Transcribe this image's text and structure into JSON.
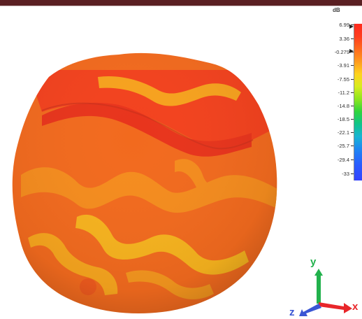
{
  "legend": {
    "unit": "dB",
    "ticks": [
      "6.99",
      "3.36",
      "-0.279",
      "-3.91",
      "-7.55",
      "-11.2",
      "-14.8",
      "-18.5",
      "-22.1",
      "-25.7",
      "-29.4",
      "-33"
    ]
  },
  "axes": {
    "x_label": "x",
    "y_label": "y",
    "z_label": "z",
    "x_color": "#e8262a",
    "y_color": "#22b14c",
    "z_color": "#3a56d4"
  },
  "pattern": {
    "colormap_high": "#ff2a1e",
    "colormap_mid": "#f5a21e"
  }
}
